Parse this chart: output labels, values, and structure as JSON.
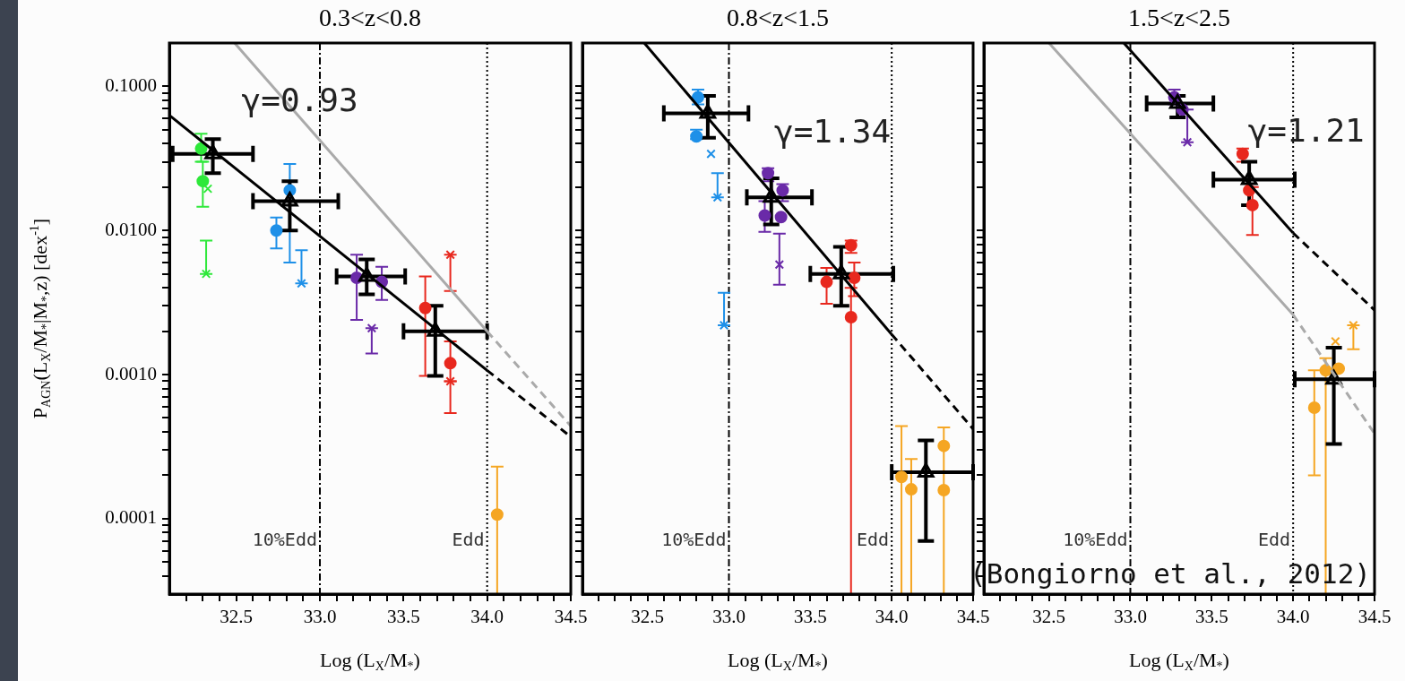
{
  "chart_data": [
    {
      "type": "scatter",
      "title": "0.3<z<0.8",
      "xlabel": "Log (L$_{X}$/M$_{*}$)",
      "ylabel": "P$_{AGN}$(L$_{X}$/M$_{*}$|M$_{*}$,z) [dex$^{-1}$]",
      "log": "y",
      "xlim": [
        32.1,
        34.5
      ],
      "ylim": [
        3e-05,
        0.2
      ],
      "xticks": [
        {
          "value": 32.2,
          "label": null
        },
        {
          "value": 32.3,
          "label": null
        },
        {
          "value": 32.4,
          "label": null
        },
        32.5,
        {
          "value": 32.6,
          "label": null
        },
        {
          "value": 32.7,
          "label": null
        },
        {
          "value": 32.8,
          "label": null
        },
        {
          "value": 32.9,
          "label": null
        },
        {
          "value": 33,
          "label": "33.0"
        },
        {
          "value": 33.1,
          "label": null
        },
        {
          "value": 33.2,
          "label": null
        },
        {
          "value": 33.3,
          "label": null
        },
        {
          "value": 33.4,
          "label": null
        },
        33.5,
        {
          "value": 33.6,
          "label": null
        },
        {
          "value": 33.7,
          "label": null
        },
        {
          "value": 33.8,
          "label": null
        },
        {
          "value": 33.9,
          "label": null
        },
        {
          "value": 34,
          "label": "34.0"
        },
        {
          "value": 34.1,
          "label": null
        },
        {
          "value": 34.2,
          "label": null
        },
        {
          "value": 34.3,
          "label": null
        },
        {
          "value": 34.4,
          "label": null
        },
        34.5
      ],
      "yticks": [
        {
          "value": 4e-05,
          "label": null
        },
        {
          "value": 5e-05,
          "label": null
        },
        {
          "value": 6e-05,
          "label": null
        },
        {
          "value": 7e-05,
          "label": null
        },
        {
          "value": 8e-05,
          "label": null
        },
        {
          "value": 9e-05,
          "label": null
        },
        0.0001,
        {
          "value": 0.0002,
          "label": null
        },
        {
          "value": 0.0003,
          "label": null
        },
        {
          "value": 0.0004,
          "label": null
        },
        {
          "value": 0.0005,
          "label": null
        },
        {
          "value": 0.0006,
          "label": null
        },
        {
          "value": 0.0007,
          "label": null
        },
        {
          "value": 0.0008,
          "label": null
        },
        {
          "value": 0.0009,
          "label": null
        },
        {
          "value": 0.001,
          "label": "0.0010"
        },
        {
          "value": 0.002,
          "label": null
        },
        {
          "value": 0.003,
          "label": null
        },
        {
          "value": 0.004,
          "label": null
        },
        {
          "value": 0.005,
          "label": null
        },
        {
          "value": 0.006,
          "label": null
        },
        {
          "value": 0.007,
          "label": null
        },
        {
          "value": 0.008,
          "label": null
        },
        {
          "value": 0.009,
          "label": null
        },
        {
          "value": 0.01,
          "label": "0.0100"
        },
        {
          "value": 0.02,
          "label": null
        },
        {
          "value": 0.03,
          "label": null
        },
        {
          "value": 0.04,
          "label": null
        },
        {
          "value": 0.05,
          "label": null
        },
        {
          "value": 0.06,
          "label": null
        },
        {
          "value": 0.07,
          "label": null
        },
        {
          "value": 0.08,
          "label": null
        },
        {
          "value": 0.09,
          "label": null
        },
        {
          "value": 0.1,
          "label": "0.1000"
        }
      ],
      "ref_lines": [
        {
          "axis": "x",
          "value": 33,
          "label": "10%Edd",
          "line_style": "dashed"
        },
        {
          "axis": "x",
          "value": 34,
          "label": "Edd",
          "line_style": "dotted"
        }
      ],
      "annotations": [
        "γ=0.93"
      ],
      "series": [
        {
          "color": "#2ee83a",
          "marker": "circle",
          "x": [
            32.29,
            32.3
          ],
          "values": [
            0.037,
            0.022
          ],
          "errors": [
            [
              0.03,
              0.047
            ],
            [
              0.0146,
              0.03
            ]
          ]
        },
        {
          "color": "#2ee83a",
          "marker": "cross",
          "x": [
            32.33,
            32.32
          ],
          "values": [
            0.0195,
            0.005
          ],
          "errors": [
            null,
            [
              0.005,
              0.0085
            ]
          ]
        },
        {
          "color": "#1e90e8",
          "marker": "circle",
          "x": [
            32.74,
            32.82
          ],
          "values": [
            0.01,
            0.019
          ],
          "errors": [
            [
              0.0075,
              0.0123
            ],
            [
              0.006,
              0.029
            ]
          ]
        },
        {
          "color": "#1e90e8",
          "marker": "cross",
          "x": [
            32.89
          ],
          "values": [
            0.0043
          ],
          "errors": [
            [
              0.0043,
              0.0073
            ]
          ]
        },
        {
          "color": "#6a2aa8",
          "marker": "circle",
          "x": [
            33.22,
            33.37
          ],
          "values": [
            0.0047,
            0.0044
          ],
          "errors": [
            [
              0.0024,
              0.0068
            ],
            [
              0.0033,
              0.0056
            ]
          ]
        },
        {
          "color": "#6a2aa8",
          "marker": "cross",
          "x": [
            33.31
          ],
          "values": [
            0.0021
          ],
          "errors": [
            [
              0.0014,
              0.0021
            ]
          ]
        },
        {
          "color": "#e8281e",
          "marker": "circle",
          "x": [
            33.63,
            33.78
          ],
          "values": [
            0.0029,
            0.0012
          ],
          "errors": [
            [
              0.00098,
              0.0048
            ],
            [
              0.0009,
              0.0017
            ]
          ]
        },
        {
          "color": "#e8281e",
          "marker": "cross",
          "x": [
            33.78,
            33.78
          ],
          "values": [
            0.0068,
            0.0009
          ],
          "errors": [
            [
              0.0038,
              0.0068
            ],
            [
              0.00054,
              0.0009
            ]
          ]
        },
        {
          "color": "#f5a623",
          "marker": "circle",
          "x": [
            34.06
          ],
          "values": [
            0.000107
          ],
          "errors": [
            [
              3e-05,
              0.00023
            ]
          ]
        },
        {
          "color": "#000000",
          "marker": "triangle",
          "x": [
            32.36,
            32.82,
            33.28,
            33.69
          ],
          "values": [
            0.034,
            0.016,
            0.0048,
            0.002
          ],
          "errors": [
            [
              0.025,
              0.043
            ],
            [
              0.01,
              0.022
            ],
            [
              0.0036,
              0.0063
            ],
            [
              0.00098,
              0.003
            ]
          ],
          "xerrors": [
            [
              32.12,
              32.6
            ],
            [
              32.6,
              33.11
            ],
            [
              33.1,
              33.51
            ],
            [
              33.5,
              34.0
            ]
          ]
        },
        {
          "type": "line",
          "color": "#000000",
          "marker": "none",
          "line_style": "solid",
          "x": [
            32.1,
            34.0
          ],
          "values": [
            0.063,
            0.00107
          ]
        },
        {
          "type": "line",
          "color": "#000000",
          "marker": "none",
          "line_style": "dashed",
          "x": [
            34.0,
            34.5
          ],
          "values": [
            0.00107,
            0.00037
          ]
        },
        {
          "type": "line",
          "color": "#aaaaaa",
          "marker": "none",
          "line_style": "solid",
          "x": [
            32.49,
            34.0
          ],
          "values": [
            0.2,
            0.002
          ]
        },
        {
          "type": "line",
          "color": "#aaaaaa",
          "marker": "none",
          "line_style": "dashed",
          "x": [
            34.0,
            34.5
          ],
          "values": [
            0.002,
            0.00044
          ]
        }
      ]
    },
    {
      "type": "scatter",
      "title": "0.8<z<1.5",
      "xlabel": "Log (L$_{X}$/M$_{*}$)",
      "log": "y",
      "tick_labels": "x",
      "xlim": [
        32.1,
        34.5
      ],
      "ylim": [
        3e-05,
        0.2
      ],
      "xticks": [
        {
          "value": 32.2,
          "label": null
        },
        {
          "value": 32.3,
          "label": null
        },
        {
          "value": 32.4,
          "label": null
        },
        32.5,
        {
          "value": 32.6,
          "label": null
        },
        {
          "value": 32.7,
          "label": null
        },
        {
          "value": 32.8,
          "label": null
        },
        {
          "value": 32.9,
          "label": null
        },
        {
          "value": 33,
          "label": "33.0"
        },
        {
          "value": 33.1,
          "label": null
        },
        {
          "value": 33.2,
          "label": null
        },
        {
          "value": 33.3,
          "label": null
        },
        {
          "value": 33.4,
          "label": null
        },
        33.5,
        {
          "value": 33.6,
          "label": null
        },
        {
          "value": 33.7,
          "label": null
        },
        {
          "value": 33.8,
          "label": null
        },
        {
          "value": 33.9,
          "label": null
        },
        {
          "value": 34,
          "label": "34.0"
        },
        {
          "value": 34.1,
          "label": null
        },
        {
          "value": 34.2,
          "label": null
        },
        {
          "value": 34.3,
          "label": null
        },
        {
          "value": 34.4,
          "label": null
        },
        34.5
      ],
      "yticks": [
        {
          "value": 4e-05,
          "label": null
        },
        {
          "value": 5e-05,
          "label": null
        },
        {
          "value": 6e-05,
          "label": null
        },
        {
          "value": 7e-05,
          "label": null
        },
        {
          "value": 8e-05,
          "label": null
        },
        {
          "value": 9e-05,
          "label": null
        },
        {
          "value": 0.0001,
          "label": null
        },
        {
          "value": 0.0002,
          "label": null
        },
        {
          "value": 0.0003,
          "label": null
        },
        {
          "value": 0.0004,
          "label": null
        },
        {
          "value": 0.0005,
          "label": null
        },
        {
          "value": 0.0006,
          "label": null
        },
        {
          "value": 0.0007,
          "label": null
        },
        {
          "value": 0.0008,
          "label": null
        },
        {
          "value": 0.0009,
          "label": null
        },
        {
          "value": 0.001,
          "label": null
        },
        {
          "value": 0.002,
          "label": null
        },
        {
          "value": 0.003,
          "label": null
        },
        {
          "value": 0.004,
          "label": null
        },
        {
          "value": 0.005,
          "label": null
        },
        {
          "value": 0.006,
          "label": null
        },
        {
          "value": 0.007,
          "label": null
        },
        {
          "value": 0.008,
          "label": null
        },
        {
          "value": 0.009,
          "label": null
        },
        {
          "value": 0.01,
          "label": null
        },
        {
          "value": 0.02,
          "label": null
        },
        {
          "value": 0.03,
          "label": null
        },
        {
          "value": 0.04,
          "label": null
        },
        {
          "value": 0.05,
          "label": null
        },
        {
          "value": 0.06,
          "label": null
        },
        {
          "value": 0.07,
          "label": null
        },
        {
          "value": 0.08,
          "label": null
        },
        {
          "value": 0.09,
          "label": null
        },
        {
          "value": 0.1,
          "label": null
        }
      ],
      "ref_lines": [
        {
          "axis": "x",
          "value": 33,
          "label": "10%Edd",
          "line_style": "dashed"
        },
        {
          "axis": "x",
          "value": 34,
          "label": "Edd",
          "line_style": "dotted"
        }
      ],
      "annotations": [
        "γ=1.34"
      ],
      "series": [
        {
          "color": "#1e90e8",
          "x": [
            32.81,
            32.8
          ],
          "values": [
            0.084,
            0.045
          ],
          "errors": [
            [
              0.075,
              0.095
            ],
            [
              0.043,
              0.05
            ]
          ]
        },
        {
          "color": "#1e90e8",
          "marker": "cross",
          "x": [
            32.89,
            32.93,
            32.97
          ],
          "values": [
            0.034,
            0.017,
            0.0022
          ],
          "errors": [
            null,
            [
              0.017,
              0.025
            ],
            [
              0.0022,
              0.0037
            ]
          ]
        },
        {
          "color": "#6a2aa8",
          "marker": "circle",
          "x": [
            33.24,
            33.22,
            33.32,
            33.33
          ],
          "values": [
            0.025,
            0.0127,
            0.0124,
            0.019
          ],
          "errors": [
            [
              0.022,
              0.027
            ],
            [
              0.0098,
              0.016
            ],
            null,
            [
              0.016,
              0.021
            ]
          ]
        },
        {
          "color": "#6a2aa8",
          "marker": "cross",
          "x": [
            33.31
          ],
          "values": [
            0.0058
          ],
          "errors": [
            [
              0.0042,
              0.0095
            ]
          ]
        },
        {
          "color": "#e8281e",
          "marker": "circle",
          "x": [
            33.75,
            33.6,
            33.77,
            33.75
          ],
          "values": [
            0.0079,
            0.0044,
            0.0047,
            0.0025
          ],
          "errors": [
            [
              0.007,
              0.0085
            ],
            [
              0.0031,
              0.0055
            ],
            [
              0.0035,
              0.006
            ],
            [
              3e-05,
              0.004
            ]
          ]
        },
        {
          "color": "#f5a623",
          "marker": "circle",
          "x": [
            34.06,
            34.12,
            34.32,
            34.32
          ],
          "values": [
            0.000195,
            0.00016,
            0.00032,
            0.000158
          ],
          "errors": [
            [
              3e-05,
              0.00044
            ],
            [
              3e-05,
              0.00026
            ],
            [
              3e-05,
              0.00043
            ],
            null
          ]
        },
        {
          "color": "#000000",
          "marker": "triangle",
          "x": [
            32.87,
            33.26,
            33.69,
            34.21
          ],
          "values": [
            0.065,
            0.017,
            0.005,
            0.00021
          ],
          "errors": [
            [
              0.044,
              0.086
            ],
            [
              0.011,
              0.023
            ],
            [
              0.003,
              0.0077
            ],
            [
              7e-05,
              0.00035
            ]
          ],
          "xerrors": [
            [
              32.6,
              33.12
            ],
            [
              33.11,
              33.51
            ],
            [
              33.5,
              34.01
            ],
            [
              34.0,
              34.5
            ]
          ]
        },
        {
          "type": "line",
          "color": "#000000",
          "marker": "none",
          "line_style": "solid",
          "x": [
            32.48,
            34.0
          ],
          "values": [
            0.2,
            0.0019
          ]
        },
        {
          "type": "line",
          "color": "#000000",
          "marker": "none",
          "line_style": "dashed",
          "x": [
            34.0,
            34.5
          ],
          "values": [
            0.0019,
            0.00042
          ]
        }
      ]
    },
    {
      "type": "scatter",
      "title": "1.5<z<2.5",
      "xlabel": "Log (L$_{X}$/M$_{*}$)",
      "log": "y",
      "tick_labels": "x",
      "xlim": [
        32.1,
        34.5
      ],
      "ylim": [
        3e-05,
        0.2
      ],
      "xticks": [
        {
          "value": 32.2,
          "label": null
        },
        {
          "value": 32.3,
          "label": null
        },
        {
          "value": 32.4,
          "label": null
        },
        32.5,
        {
          "value": 32.6,
          "label": null
        },
        {
          "value": 32.7,
          "label": null
        },
        {
          "value": 32.8,
          "label": null
        },
        {
          "value": 32.9,
          "label": null
        },
        {
          "value": 33,
          "label": "33.0"
        },
        {
          "value": 33.1,
          "label": null
        },
        {
          "value": 33.2,
          "label": null
        },
        {
          "value": 33.3,
          "label": null
        },
        {
          "value": 33.4,
          "label": null
        },
        33.5,
        {
          "value": 33.6,
          "label": null
        },
        {
          "value": 33.7,
          "label": null
        },
        {
          "value": 33.8,
          "label": null
        },
        {
          "value": 33.9,
          "label": null
        },
        {
          "value": 34,
          "label": "34.0"
        },
        {
          "value": 34.1,
          "label": null
        },
        {
          "value": 34.2,
          "label": null
        },
        {
          "value": 34.3,
          "label": null
        },
        {
          "value": 34.4,
          "label": null
        },
        34.5
      ],
      "yticks": [
        {
          "value": 4e-05,
          "label": null
        },
        {
          "value": 5e-05,
          "label": null
        },
        {
          "value": 6e-05,
          "label": null
        },
        {
          "value": 7e-05,
          "label": null
        },
        {
          "value": 8e-05,
          "label": null
        },
        {
          "value": 9e-05,
          "label": null
        },
        {
          "value": 0.0001,
          "label": null
        },
        {
          "value": 0.0002,
          "label": null
        },
        {
          "value": 0.0003,
          "label": null
        },
        {
          "value": 0.0004,
          "label": null
        },
        {
          "value": 0.0005,
          "label": null
        },
        {
          "value": 0.0006,
          "label": null
        },
        {
          "value": 0.0007,
          "label": null
        },
        {
          "value": 0.0008,
          "label": null
        },
        {
          "value": 0.0009,
          "label": null
        },
        {
          "value": 0.001,
          "label": null
        },
        {
          "value": 0.002,
          "label": null
        },
        {
          "value": 0.003,
          "label": null
        },
        {
          "value": 0.004,
          "label": null
        },
        {
          "value": 0.005,
          "label": null
        },
        {
          "value": 0.006,
          "label": null
        },
        {
          "value": 0.007,
          "label": null
        },
        {
          "value": 0.008,
          "label": null
        },
        {
          "value": 0.009,
          "label": null
        },
        {
          "value": 0.01,
          "label": null
        },
        {
          "value": 0.02,
          "label": null
        },
        {
          "value": 0.03,
          "label": null
        },
        {
          "value": 0.04,
          "label": null
        },
        {
          "value": 0.05,
          "label": null
        },
        {
          "value": 0.06,
          "label": null
        },
        {
          "value": 0.07,
          "label": null
        },
        {
          "value": 0.08,
          "label": null
        },
        {
          "value": 0.09,
          "label": null
        },
        {
          "value": 0.1,
          "label": null
        }
      ],
      "ref_lines": [
        {
          "axis": "x",
          "value": 33,
          "label": "10%Edd",
          "line_style": "dashed"
        },
        {
          "axis": "x",
          "value": 34,
          "label": "Edd",
          "line_style": "dotted"
        }
      ],
      "annotations": [
        "γ=1.21",
        "(Bongiorno et al., 2012)"
      ],
      "series": [
        {
          "color": "#6a2aa8",
          "x": [
            33.27,
            33.32
          ],
          "values": [
            0.084,
            0.069
          ],
          "errors": [
            [
              0.075,
              0.095
            ],
            null
          ]
        },
        {
          "color": "#6a2aa8",
          "marker": "cross",
          "x": [
            33.35
          ],
          "values": [
            0.041
          ],
          "errors": [
            [
              0.041,
              0.069
            ]
          ]
        },
        {
          "color": "#e8281e",
          "marker": "circle",
          "x": [
            33.69,
            33.75,
            33.73
          ],
          "values": [
            0.034,
            0.015,
            0.019
          ],
          "errors": [
            [
              0.03,
              0.037
            ],
            [
              0.0093,
              0.02
            ],
            null
          ]
        },
        {
          "color": "#f5a623",
          "marker": "circle",
          "x": [
            34.13,
            34.2,
            34.28
          ],
          "values": [
            0.00059,
            0.00107,
            0.0011
          ],
          "errors": [
            [
              0.0002,
              0.00107
            ],
            [
              3e-05,
              0.0013
            ],
            null
          ]
        },
        {
          "color": "#f5a623",
          "marker": "cross",
          "x": [
            34.37,
            34.26
          ],
          "values": [
            0.0022,
            0.0017
          ],
          "errors": [
            [
              0.0015,
              0.0022
            ],
            null
          ]
        },
        {
          "color": "#000000",
          "marker": "triangle",
          "x": [
            33.29,
            33.73,
            34.25
          ],
          "values": [
            0.076,
            0.0225,
            0.00093
          ],
          "errors": [
            [
              0.061,
              0.086
            ],
            [
              0.015,
              0.03
            ],
            [
              0.00033,
              0.00154
            ]
          ],
          "xerrors": [
            [
              33.1,
              33.51
            ],
            [
              33.51,
              34.01
            ],
            [
              34.01,
              34.5
            ]
          ]
        },
        {
          "type": "line",
          "color": "#000000",
          "marker": "none",
          "line_style": "solid",
          "x": [
            32.96,
            34.0
          ],
          "values": [
            0.2,
            0.0096
          ]
        },
        {
          "type": "line",
          "color": "#000000",
          "marker": "none",
          "line_style": "dashed",
          "x": [
            34.0,
            34.5
          ],
          "values": [
            0.0096,
            0.0028
          ]
        },
        {
          "type": "line",
          "color": "#aaaaaa",
          "marker": "none",
          "line_style": "solid",
          "x": [
            32.5,
            34.0
          ],
          "values": [
            0.2,
            0.0026
          ]
        },
        {
          "type": "line",
          "color": "#aaaaaa",
          "marker": "none",
          "line_style": "dashed",
          "x": [
            34.0,
            34.5
          ],
          "values": [
            0.0026,
            0.00039
          ]
        }
      ]
    }
  ]
}
